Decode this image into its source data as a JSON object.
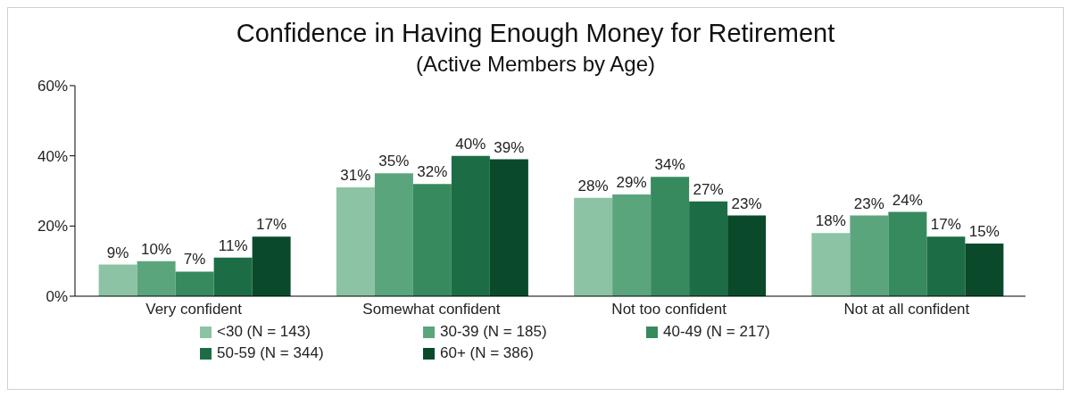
{
  "chart_data": {
    "type": "bar",
    "title": "Confidence in Having Enough Money for Retirement",
    "subtitle": "(Active Members by Age)",
    "categories": [
      "Very confident",
      "Somewhat confident",
      "Not too confident",
      "Not at all confident"
    ],
    "series": [
      {
        "name": "<30 (N = 143)",
        "color": "#8cc3a4",
        "values": [
          9,
          31,
          28,
          18
        ],
        "value_labels": [
          "9%",
          "31%",
          "28%",
          "18%"
        ]
      },
      {
        "name": "30-39 (N = 185)",
        "color": "#5ba57d",
        "values": [
          10,
          35,
          29,
          23
        ],
        "value_labels": [
          "10%",
          "35%",
          "29%",
          "23%"
        ]
      },
      {
        "name": "40-49 (N = 217)",
        "color": "#378a5e",
        "values": [
          7,
          32,
          34,
          24
        ],
        "value_labels": [
          "7%",
          "32%",
          "34%",
          "24%"
        ]
      },
      {
        "name": "50-59 (N = 344)",
        "color": "#1c6d45",
        "values": [
          11,
          40,
          27,
          17
        ],
        "value_labels": [
          "11%",
          "40%",
          "27%",
          "17%"
        ]
      },
      {
        "name": "60+ (N = 386)",
        "color": "#0a4a2b",
        "values": [
          17,
          39,
          23,
          15
        ],
        "value_labels": [
          "17%",
          "39%",
          "23%",
          "15%"
        ]
      }
    ],
    "ylim": [
      0,
      60
    ],
    "yticks": [
      {
        "value": 0,
        "label": "0%"
      },
      {
        "value": 20,
        "label": "20%"
      },
      {
        "value": 40,
        "label": "40%"
      },
      {
        "value": 60,
        "label": "60%"
      }
    ],
    "grid": false,
    "legend": "bottom"
  }
}
